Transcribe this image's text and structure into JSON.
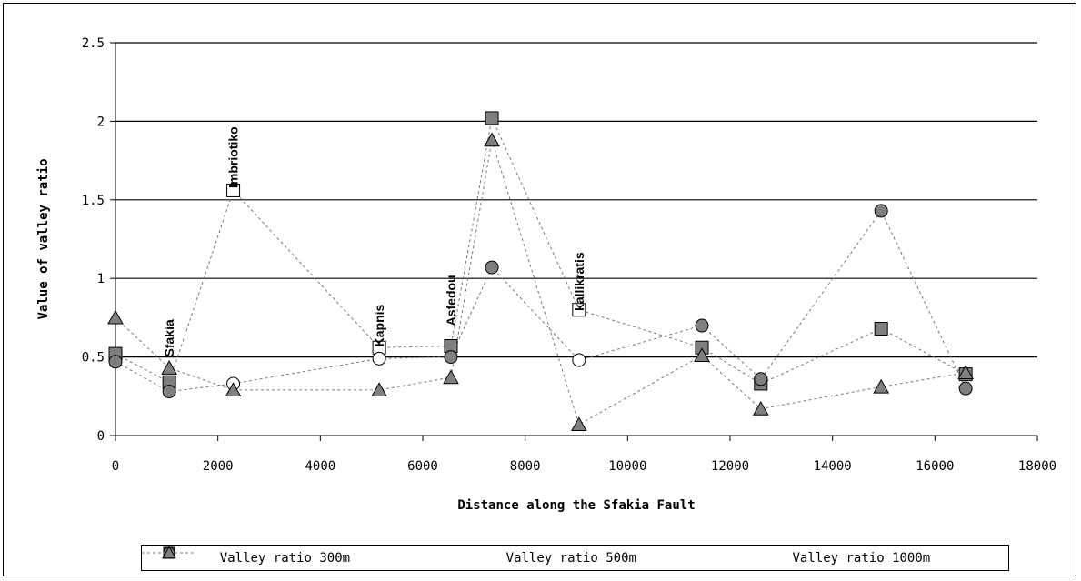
{
  "chart_data": {
    "type": "scatter",
    "xlabel": "Distance along the Sfakia Fault",
    "ylabel": "Value of valley ratio",
    "xlim": [
      0,
      18000
    ],
    "ylim": [
      0,
      2.5
    ],
    "x_ticks": [
      "0",
      "2000",
      "4000",
      "6000",
      "8000",
      "10000",
      "12000",
      "14000",
      "16000",
      "18000"
    ],
    "y_ticks": [
      "0",
      "0.5",
      "1",
      "1.5",
      "2",
      "2.5"
    ],
    "grid": "horizontal",
    "legend_position": "bottom",
    "series": [
      {
        "name": "Valley ratio 300m",
        "marker": "square",
        "color": "#7f7f7f",
        "points": [
          {
            "x": 0,
            "y": 0.52
          },
          {
            "x": 1050,
            "y": 0.34
          },
          {
            "x": 2300,
            "y": 1.56,
            "hollow": true
          },
          {
            "x": 5150,
            "y": 0.56,
            "hollow": true
          },
          {
            "x": 6550,
            "y": 0.57
          },
          {
            "x": 7350,
            "y": 2.02
          },
          {
            "x": 9050,
            "y": 0.8,
            "hollow": true
          },
          {
            "x": 11450,
            "y": 0.56
          },
          {
            "x": 12600,
            "y": 0.33
          },
          {
            "x": 14950,
            "y": 0.68
          },
          {
            "x": 16600,
            "y": 0.39
          }
        ]
      },
      {
        "name": "Valley ratio 500m",
        "marker": "circle",
        "color": "#7f7f7f",
        "points": [
          {
            "x": 0,
            "y": 0.47
          },
          {
            "x": 1050,
            "y": 0.28
          },
          {
            "x": 2300,
            "y": 0.33,
            "hollow": true
          },
          {
            "x": 5150,
            "y": 0.49,
            "hollow": true
          },
          {
            "x": 6550,
            "y": 0.5
          },
          {
            "x": 7350,
            "y": 1.07
          },
          {
            "x": 9050,
            "y": 0.48,
            "hollow": true
          },
          {
            "x": 11450,
            "y": 0.7
          },
          {
            "x": 12600,
            "y": 0.36
          },
          {
            "x": 14950,
            "y": 1.43
          },
          {
            "x": 16600,
            "y": 0.3
          }
        ]
      },
      {
        "name": "Valley ratio 1000m",
        "marker": "triangle",
        "color": "#7f7f7f",
        "points": [
          {
            "x": 0,
            "y": 0.75
          },
          {
            "x": 1050,
            "y": 0.43
          },
          {
            "x": 2300,
            "y": 0.29
          },
          {
            "x": 5150,
            "y": 0.29
          },
          {
            "x": 6550,
            "y": 0.37
          },
          {
            "x": 7350,
            "y": 1.88
          },
          {
            "x": 9050,
            "y": 0.07
          },
          {
            "x": 11450,
            "y": 0.51
          },
          {
            "x": 12600,
            "y": 0.17
          },
          {
            "x": 14950,
            "y": 0.31
          },
          {
            "x": 16600,
            "y": 0.4
          }
        ]
      }
    ],
    "annotations": [
      {
        "text": "Sfakia",
        "x": 1050,
        "y": 0.62
      },
      {
        "text": "Imbriotiko",
        "x": 2300,
        "y": 1.77
      },
      {
        "text": "Kapnis",
        "x": 5150,
        "y": 0.7
      },
      {
        "text": "Asfedou",
        "x": 6550,
        "y": 0.86
      },
      {
        "text": "kallikratis",
        "x": 9050,
        "y": 0.98
      }
    ]
  }
}
